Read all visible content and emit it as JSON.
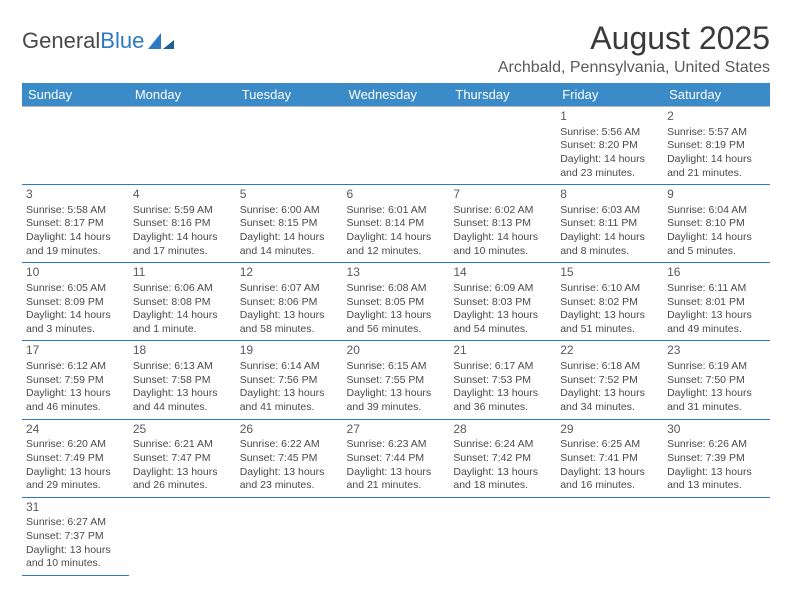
{
  "logo": {
    "text_a": "General",
    "text_b": "Blue"
  },
  "title": "August 2025",
  "location": "Archbald, Pennsylvania, United States",
  "colors": {
    "header_bg": "#3b8bc9",
    "header_text": "#ffffff",
    "row_border": "#2e7ac2",
    "text": "#4a4a4a",
    "title_text": "#3a3a3a",
    "location_text": "#5a5a5a"
  },
  "weekdays": [
    "Sunday",
    "Monday",
    "Tuesday",
    "Wednesday",
    "Thursday",
    "Friday",
    "Saturday"
  ],
  "weeks": [
    [
      null,
      null,
      null,
      null,
      null,
      {
        "n": "1",
        "sr": "Sunrise: 5:56 AM",
        "ss": "Sunset: 8:20 PM",
        "dl1": "Daylight: 14 hours",
        "dl2": "and 23 minutes."
      },
      {
        "n": "2",
        "sr": "Sunrise: 5:57 AM",
        "ss": "Sunset: 8:19 PM",
        "dl1": "Daylight: 14 hours",
        "dl2": "and 21 minutes."
      }
    ],
    [
      {
        "n": "3",
        "sr": "Sunrise: 5:58 AM",
        "ss": "Sunset: 8:17 PM",
        "dl1": "Daylight: 14 hours",
        "dl2": "and 19 minutes."
      },
      {
        "n": "4",
        "sr": "Sunrise: 5:59 AM",
        "ss": "Sunset: 8:16 PM",
        "dl1": "Daylight: 14 hours",
        "dl2": "and 17 minutes."
      },
      {
        "n": "5",
        "sr": "Sunrise: 6:00 AM",
        "ss": "Sunset: 8:15 PM",
        "dl1": "Daylight: 14 hours",
        "dl2": "and 14 minutes."
      },
      {
        "n": "6",
        "sr": "Sunrise: 6:01 AM",
        "ss": "Sunset: 8:14 PM",
        "dl1": "Daylight: 14 hours",
        "dl2": "and 12 minutes."
      },
      {
        "n": "7",
        "sr": "Sunrise: 6:02 AM",
        "ss": "Sunset: 8:13 PM",
        "dl1": "Daylight: 14 hours",
        "dl2": "and 10 minutes."
      },
      {
        "n": "8",
        "sr": "Sunrise: 6:03 AM",
        "ss": "Sunset: 8:11 PM",
        "dl1": "Daylight: 14 hours",
        "dl2": "and 8 minutes."
      },
      {
        "n": "9",
        "sr": "Sunrise: 6:04 AM",
        "ss": "Sunset: 8:10 PM",
        "dl1": "Daylight: 14 hours",
        "dl2": "and 5 minutes."
      }
    ],
    [
      {
        "n": "10",
        "sr": "Sunrise: 6:05 AM",
        "ss": "Sunset: 8:09 PM",
        "dl1": "Daylight: 14 hours",
        "dl2": "and 3 minutes."
      },
      {
        "n": "11",
        "sr": "Sunrise: 6:06 AM",
        "ss": "Sunset: 8:08 PM",
        "dl1": "Daylight: 14 hours",
        "dl2": "and 1 minute."
      },
      {
        "n": "12",
        "sr": "Sunrise: 6:07 AM",
        "ss": "Sunset: 8:06 PM",
        "dl1": "Daylight: 13 hours",
        "dl2": "and 58 minutes."
      },
      {
        "n": "13",
        "sr": "Sunrise: 6:08 AM",
        "ss": "Sunset: 8:05 PM",
        "dl1": "Daylight: 13 hours",
        "dl2": "and 56 minutes."
      },
      {
        "n": "14",
        "sr": "Sunrise: 6:09 AM",
        "ss": "Sunset: 8:03 PM",
        "dl1": "Daylight: 13 hours",
        "dl2": "and 54 minutes."
      },
      {
        "n": "15",
        "sr": "Sunrise: 6:10 AM",
        "ss": "Sunset: 8:02 PM",
        "dl1": "Daylight: 13 hours",
        "dl2": "and 51 minutes."
      },
      {
        "n": "16",
        "sr": "Sunrise: 6:11 AM",
        "ss": "Sunset: 8:01 PM",
        "dl1": "Daylight: 13 hours",
        "dl2": "and 49 minutes."
      }
    ],
    [
      {
        "n": "17",
        "sr": "Sunrise: 6:12 AM",
        "ss": "Sunset: 7:59 PM",
        "dl1": "Daylight: 13 hours",
        "dl2": "and 46 minutes."
      },
      {
        "n": "18",
        "sr": "Sunrise: 6:13 AM",
        "ss": "Sunset: 7:58 PM",
        "dl1": "Daylight: 13 hours",
        "dl2": "and 44 minutes."
      },
      {
        "n": "19",
        "sr": "Sunrise: 6:14 AM",
        "ss": "Sunset: 7:56 PM",
        "dl1": "Daylight: 13 hours",
        "dl2": "and 41 minutes."
      },
      {
        "n": "20",
        "sr": "Sunrise: 6:15 AM",
        "ss": "Sunset: 7:55 PM",
        "dl1": "Daylight: 13 hours",
        "dl2": "and 39 minutes."
      },
      {
        "n": "21",
        "sr": "Sunrise: 6:17 AM",
        "ss": "Sunset: 7:53 PM",
        "dl1": "Daylight: 13 hours",
        "dl2": "and 36 minutes."
      },
      {
        "n": "22",
        "sr": "Sunrise: 6:18 AM",
        "ss": "Sunset: 7:52 PM",
        "dl1": "Daylight: 13 hours",
        "dl2": "and 34 minutes."
      },
      {
        "n": "23",
        "sr": "Sunrise: 6:19 AM",
        "ss": "Sunset: 7:50 PM",
        "dl1": "Daylight: 13 hours",
        "dl2": "and 31 minutes."
      }
    ],
    [
      {
        "n": "24",
        "sr": "Sunrise: 6:20 AM",
        "ss": "Sunset: 7:49 PM",
        "dl1": "Daylight: 13 hours",
        "dl2": "and 29 minutes."
      },
      {
        "n": "25",
        "sr": "Sunrise: 6:21 AM",
        "ss": "Sunset: 7:47 PM",
        "dl1": "Daylight: 13 hours",
        "dl2": "and 26 minutes."
      },
      {
        "n": "26",
        "sr": "Sunrise: 6:22 AM",
        "ss": "Sunset: 7:45 PM",
        "dl1": "Daylight: 13 hours",
        "dl2": "and 23 minutes."
      },
      {
        "n": "27",
        "sr": "Sunrise: 6:23 AM",
        "ss": "Sunset: 7:44 PM",
        "dl1": "Daylight: 13 hours",
        "dl2": "and 21 minutes."
      },
      {
        "n": "28",
        "sr": "Sunrise: 6:24 AM",
        "ss": "Sunset: 7:42 PM",
        "dl1": "Daylight: 13 hours",
        "dl2": "and 18 minutes."
      },
      {
        "n": "29",
        "sr": "Sunrise: 6:25 AM",
        "ss": "Sunset: 7:41 PM",
        "dl1": "Daylight: 13 hours",
        "dl2": "and 16 minutes."
      },
      {
        "n": "30",
        "sr": "Sunrise: 6:26 AM",
        "ss": "Sunset: 7:39 PM",
        "dl1": "Daylight: 13 hours",
        "dl2": "and 13 minutes."
      }
    ],
    [
      {
        "n": "31",
        "sr": "Sunrise: 6:27 AM",
        "ss": "Sunset: 7:37 PM",
        "dl1": "Daylight: 13 hours",
        "dl2": "and 10 minutes."
      },
      null,
      null,
      null,
      null,
      null,
      null
    ]
  ]
}
